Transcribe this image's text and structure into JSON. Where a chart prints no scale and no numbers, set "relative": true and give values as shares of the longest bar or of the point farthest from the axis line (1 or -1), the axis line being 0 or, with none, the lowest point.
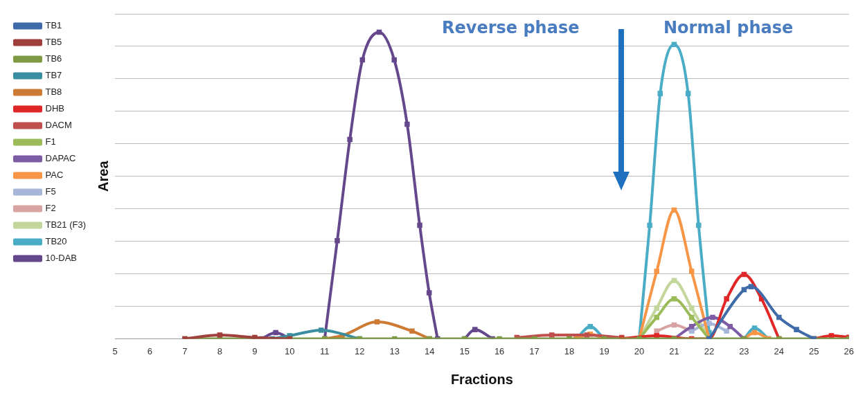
{
  "chart_data": {
    "type": "line",
    "xlabel": "Fractions",
    "ylabel": "Area",
    "relative": true,
    "xlim": [
      5,
      26
    ],
    "xticks": [
      5,
      6,
      7,
      8,
      9,
      10,
      11,
      12,
      13,
      14,
      15,
      16,
      17,
      18,
      19,
      20,
      21,
      22,
      23,
      24,
      25,
      26
    ],
    "tick_labels": "x",
    "grid": "y",
    "legend": "top left",
    "marker": "square",
    "line_style": "solid",
    "annotations": [
      "Reverse phase",
      "Normal phase"
    ],
    "series": [
      {
        "name": "TB1",
        "color": "#3f6ca8",
        "x": [
          22,
          23,
          23.2,
          24,
          24.5,
          25
        ],
        "values": [
          0,
          0.16,
          0.17,
          0.07,
          0.03,
          0
        ]
      },
      {
        "name": "TB5",
        "color": "#a0403c",
        "x": [
          7,
          8,
          9,
          10
        ],
        "values": [
          0,
          0.012,
          0.004,
          0
        ]
      },
      {
        "name": "TB6",
        "color": "#7f9a45",
        "x": [
          7,
          8,
          9,
          10,
          11,
          12,
          13,
          14,
          15,
          16,
          17,
          18,
          19,
          20,
          21,
          22,
          23,
          24,
          25,
          26
        ],
        "values": [
          0,
          0,
          0,
          0,
          0,
          0,
          0,
          0,
          0,
          0,
          0,
          0,
          0,
          0,
          0,
          0,
          0,
          0,
          0,
          0
        ]
      },
      {
        "name": "TB7",
        "color": "#3a8ea0",
        "x": [
          9.5,
          10,
          10.9,
          12
        ],
        "values": [
          0,
          0.01,
          0.028,
          0
        ]
      },
      {
        "name": "TB8",
        "color": "#cc7a34",
        "x": [
          11,
          11.5,
          12.5,
          13.5,
          14
        ],
        "values": [
          0,
          0.01,
          0.055,
          0.025,
          0
        ]
      },
      {
        "name": "DHB",
        "color": "#e02626",
        "x": [
          19.5,
          20.5,
          21.5,
          22,
          22.5,
          23,
          23.5,
          24,
          24.5,
          25,
          25.5,
          26
        ],
        "values": [
          0,
          0.01,
          0,
          0,
          0.13,
          0.21,
          0.13,
          0,
          null,
          0,
          0.01,
          0.005
        ]
      },
      {
        "name": "DACM",
        "color": "#c0504d",
        "x": [
          16.5,
          17.5,
          18.5,
          19.5
        ],
        "values": [
          0.004,
          0.012,
          0.012,
          0.004
        ]
      },
      {
        "name": "F1",
        "color": "#9bbb59",
        "x": [
          20,
          20.5,
          21,
          21.5,
          22
        ],
        "values": [
          0,
          0.07,
          0.13,
          0.07,
          0
        ]
      },
      {
        "name": "DAPAC",
        "color": "#7d5ca5",
        "x": [
          21,
          21.5,
          22.1,
          22.6,
          23
        ],
        "values": [
          0,
          0.04,
          0.07,
          0.04,
          0
        ]
      },
      {
        "name": "PAC",
        "color": "#f79646",
        "x": [
          18.2,
          18.6,
          19,
          19.5,
          20,
          20.5,
          21,
          21.5,
          22,
          22.5,
          23,
          23.3,
          23.7
        ],
        "values": [
          0,
          0.015,
          0,
          null,
          0,
          0.22,
          0.42,
          0.22,
          0,
          null,
          0,
          0.02,
          0
        ]
      },
      {
        "name": "F5",
        "color": "#a5b6d8",
        "x": [
          21.5,
          22,
          22.5
        ],
        "values": [
          0.025,
          0.05,
          0.025
        ]
      },
      {
        "name": "F2",
        "color": "#d9a3a3",
        "x": [
          20.5,
          21,
          21.5
        ],
        "values": [
          0.025,
          0.045,
          0.025
        ]
      },
      {
        "name": "TB21 (F3)",
        "color": "#c3d69b",
        "x": [
          20,
          20.5,
          21,
          21.5,
          22
        ],
        "values": [
          0,
          0.1,
          0.19,
          0.1,
          0
        ]
      },
      {
        "name": "TB20",
        "color": "#4bacc6",
        "x": [
          18.2,
          18.6,
          19,
          19.5,
          20,
          20.3,
          20.6,
          21,
          21.4,
          21.7,
          22,
          22.5,
          23,
          23.3,
          23.7
        ],
        "values": [
          0,
          0.04,
          0,
          null,
          0,
          0.37,
          0.8,
          0.96,
          0.8,
          0.37,
          0.02,
          null,
          0,
          0.035,
          0
        ]
      },
      {
        "name": "10-DAB",
        "color": "#65488c",
        "x": [
          9.2,
          9.6,
          10,
          10.5,
          11,
          11.36,
          11.72,
          12.08,
          12.56,
          12.99,
          13.36,
          13.72,
          13.99,
          14.23,
          14.6,
          15,
          15.3,
          15.8
        ],
        "values": [
          0,
          0.02,
          0,
          null,
          0,
          0.32,
          0.65,
          0.91,
          1,
          0.91,
          0.7,
          0.37,
          0.15,
          0,
          null,
          0,
          0.03,
          0
        ]
      }
    ]
  }
}
